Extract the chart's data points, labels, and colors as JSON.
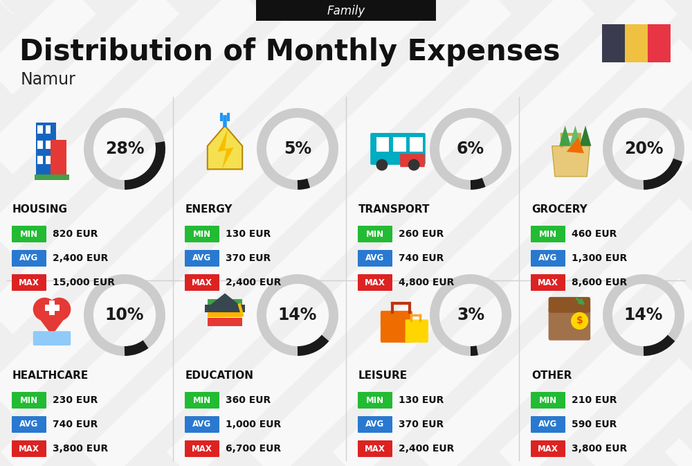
{
  "title": "Distribution of Monthly Expenses",
  "subtitle": "Family",
  "city": "Namur",
  "bg_color": "#efefef",
  "categories": [
    {
      "name": "HOUSING",
      "percent": 28,
      "min": "820 EUR",
      "avg": "2,400 EUR",
      "max": "15,000 EUR",
      "row": 0,
      "col": 0
    },
    {
      "name": "ENERGY",
      "percent": 5,
      "min": "130 EUR",
      "avg": "370 EUR",
      "max": "2,400 EUR",
      "row": 0,
      "col": 1
    },
    {
      "name": "TRANSPORT",
      "percent": 6,
      "min": "260 EUR",
      "avg": "740 EUR",
      "max": "4,800 EUR",
      "row": 0,
      "col": 2
    },
    {
      "name": "GROCERY",
      "percent": 20,
      "min": "460 EUR",
      "avg": "1,300 EUR",
      "max": "8,600 EUR",
      "row": 0,
      "col": 3
    },
    {
      "name": "HEALTHCARE",
      "percent": 10,
      "min": "230 EUR",
      "avg": "740 EUR",
      "max": "3,800 EUR",
      "row": 1,
      "col": 0
    },
    {
      "name": "EDUCATION",
      "percent": 14,
      "min": "360 EUR",
      "avg": "1,000 EUR",
      "max": "6,700 EUR",
      "row": 1,
      "col": 1
    },
    {
      "name": "LEISURE",
      "percent": 3,
      "min": "130 EUR",
      "avg": "370 EUR",
      "max": "2,400 EUR",
      "row": 1,
      "col": 2
    },
    {
      "name": "OTHER",
      "percent": 14,
      "min": "210 EUR",
      "avg": "590 EUR",
      "max": "3,800 EUR",
      "row": 1,
      "col": 3
    }
  ],
  "min_color": "#22bb33",
  "avg_color": "#2979d0",
  "max_color": "#dd2222",
  "arc_dark": "#1a1a1a",
  "arc_light": "#cccccc",
  "flag_colors": [
    "#3b3b4f",
    "#f0c040",
    "#e83545"
  ],
  "title_fontsize": 30,
  "subtitle_fontsize": 12,
  "city_fontsize": 17,
  "cat_fontsize": 11,
  "val_fontsize": 10,
  "pct_fontsize": 17,
  "stripe_color": "#e8e8e8",
  "divider_color": "#d0d0d0"
}
